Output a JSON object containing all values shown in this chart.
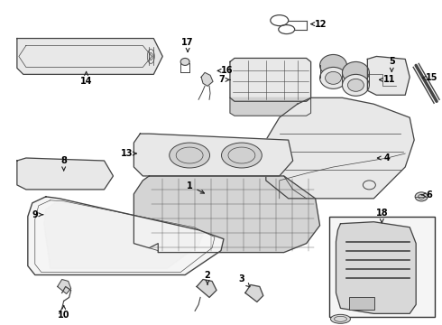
{
  "bg_color": "#ffffff",
  "line_color": "#444444",
  "text_color": "#000000",
  "fig_width": 4.9,
  "fig_height": 3.6,
  "dpi": 100
}
